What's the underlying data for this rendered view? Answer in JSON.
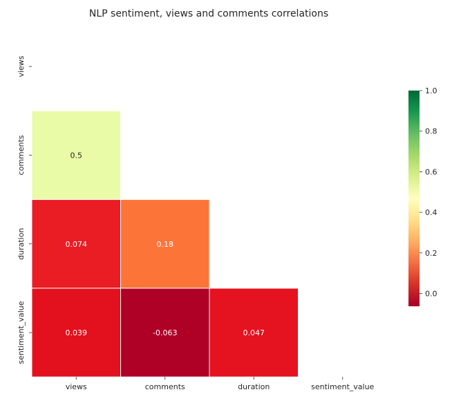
{
  "chart_data": {
    "type": "heatmap",
    "title": "NLP sentiment, views and comments correlations",
    "variables": [
      "views",
      "comments",
      "duration",
      "sentiment_value"
    ],
    "mask": "upper-triangle-including-diagonal",
    "cells": [
      {
        "row": "comments",
        "col": "views",
        "value": 0.5,
        "label": "0.5",
        "color": "#e9fba6",
        "text_color": "#262626"
      },
      {
        "row": "duration",
        "col": "views",
        "value": 0.074,
        "label": "0.074",
        "color": "#ea1c24",
        "text_color": "#ffffff"
      },
      {
        "row": "duration",
        "col": "comments",
        "value": 0.18,
        "label": "0.18",
        "color": "#fd7439",
        "text_color": "#ffffff"
      },
      {
        "row": "sentiment_value",
        "col": "views",
        "value": 0.039,
        "label": "0.039",
        "color": "#e3111e",
        "text_color": "#ffffff"
      },
      {
        "row": "sentiment_value",
        "col": "comments",
        "value": -0.063,
        "label": "-0.063",
        "color": "#af0026",
        "text_color": "#ffffff"
      },
      {
        "row": "sentiment_value",
        "col": "duration",
        "value": 0.047,
        "label": "0.047",
        "color": "#e4131f",
        "text_color": "#ffffff"
      }
    ],
    "colorbar": {
      "colormap": "RdYlGn",
      "range": [
        -0.063,
        1.0
      ],
      "ticks": [
        0.0,
        0.2,
        0.4,
        0.6,
        0.8,
        1.0
      ],
      "tick_labels": [
        "0.0",
        "0.2",
        "0.4",
        "0.6",
        "0.8",
        "1.0"
      ],
      "stops": [
        "#a50026",
        "#d73027",
        "#f46d43",
        "#fdae61",
        "#fee08b",
        "#ffffbf",
        "#d9ef8b",
        "#a6d96a",
        "#66bd63",
        "#1a9850",
        "#006837"
      ]
    },
    "gridlines": "white",
    "legend": "right"
  }
}
